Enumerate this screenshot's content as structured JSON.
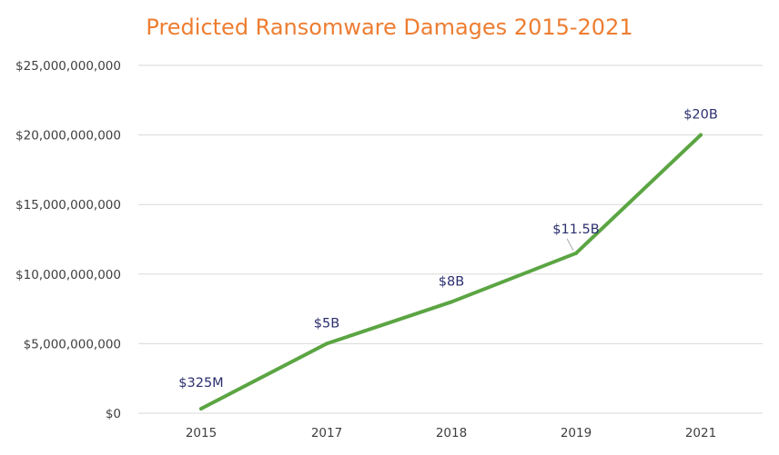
{
  "chart_data": {
    "type": "line",
    "title": "Predicted Ransomware Damages 2015-2021",
    "categories": [
      "2015",
      "2017",
      "2018",
      "2019",
      "2021"
    ],
    "series": [
      {
        "name": "Predicted Ransomware Damages",
        "values": [
          325000000,
          5000000000,
          8000000000,
          11500000000,
          20000000000
        ],
        "data_labels": [
          "$325M",
          "$5B",
          "$8B",
          "$11.5B",
          "$20B"
        ]
      }
    ],
    "y_ticks": [
      0,
      5000000000,
      10000000000,
      15000000000,
      20000000000,
      25000000000
    ],
    "y_tick_labels": [
      "$0",
      "$5,000,000,000",
      "$10,000,000,000",
      "$15,000,000,000",
      "$20,000,000,000",
      "$25,000,000,000"
    ],
    "ylim": [
      0,
      25000000000
    ],
    "xlabel": "",
    "ylabel": "",
    "grid": true,
    "legend": "none"
  },
  "colors": {
    "title": "#ED7D31",
    "line": "#5BA543",
    "gridline": "#D9D9D9",
    "tick_label": "#3F3F3F",
    "data_label": "#2B2F6E",
    "leader_line": "#A6A6A6"
  }
}
